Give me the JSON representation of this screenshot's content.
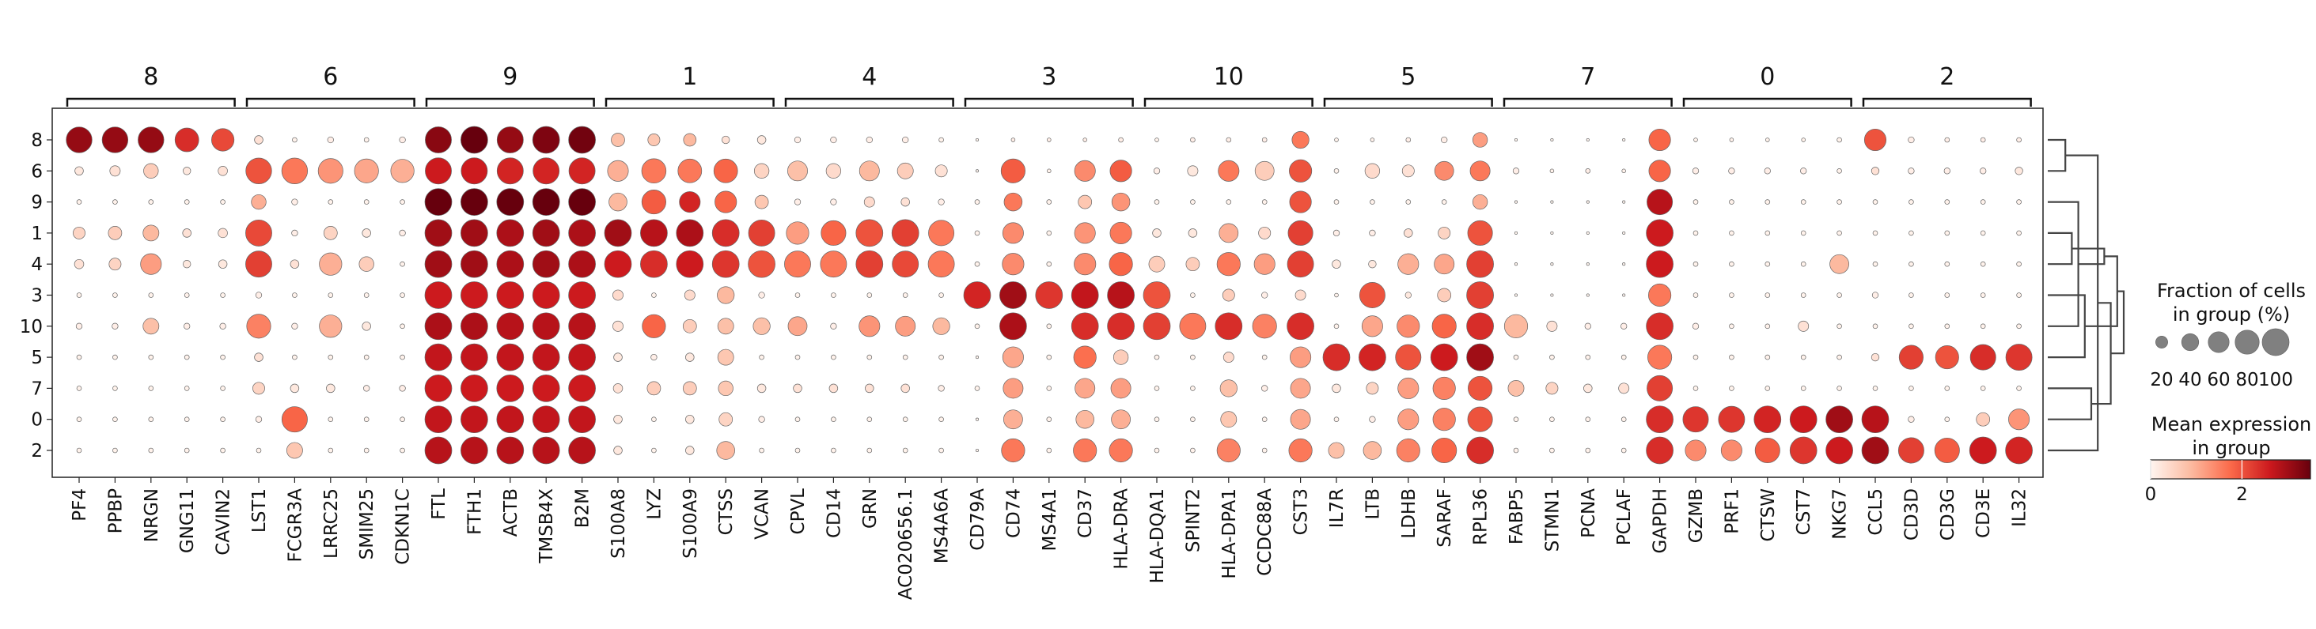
{
  "chart_data": {
    "type": "dotplot",
    "gene_groups": [
      {
        "label": "8",
        "genes": [
          "PF4",
          "PPBP",
          "NRGN",
          "GNG11",
          "CAVIN2"
        ]
      },
      {
        "label": "6",
        "genes": [
          "LST1",
          "FCGR3A",
          "LRRC25",
          "SMIM25",
          "CDKN1C"
        ]
      },
      {
        "label": "9",
        "genes": [
          "FTL",
          "FTH1",
          "ACTB",
          "TMSB4X",
          "B2M"
        ]
      },
      {
        "label": "1",
        "genes": [
          "S100A8",
          "LYZ",
          "S100A9",
          "CTSS",
          "VCAN"
        ]
      },
      {
        "label": "4",
        "genes": [
          "CPVL",
          "CD14",
          "GRN",
          "AC020656.1",
          "MS4A6A"
        ]
      },
      {
        "label": "3",
        "genes": [
          "CD79A",
          "CD74",
          "MS4A1",
          "CD37",
          "HLA-DRA"
        ]
      },
      {
        "label": "10",
        "genes": [
          "HLA-DQA1",
          "SPINT2",
          "HLA-DPA1",
          "CCDC88A",
          "CST3"
        ]
      },
      {
        "label": "5",
        "genes": [
          "IL7R",
          "LTB",
          "LDHB",
          "SARAF",
          "RPL36"
        ]
      },
      {
        "label": "7",
        "genes": [
          "FABP5",
          "STMN1",
          "PCNA",
          "PCLAF",
          "GAPDH"
        ]
      },
      {
        "label": "0",
        "genes": [
          "GZMB",
          "PRF1",
          "CTSW",
          "CST7",
          "NKG7"
        ]
      },
      {
        "label": "2",
        "genes": [
          "CCL5",
          "CD3D",
          "CD3G",
          "CD3E",
          "IL32"
        ]
      }
    ],
    "rows": [
      "8",
      "6",
      "9",
      "1",
      "4",
      "3",
      "10",
      "5",
      "7",
      "0",
      "2"
    ],
    "fraction_pct": [
      [
        92,
        92,
        92,
        78,
        70,
        10,
        3,
        5,
        3,
        5,
        95,
        100,
        95,
        100,
        100,
        25,
        20,
        22,
        8,
        10,
        5,
        5,
        5,
        5,
        3,
        1,
        2,
        2,
        2,
        3,
        2,
        3,
        3,
        3,
        40,
        2,
        2,
        3,
        5,
        30,
        1,
        1,
        1,
        1,
        65,
        2,
        2,
        2,
        2,
        3,
        65,
        5,
        3,
        3,
        3
      ],
      [
        10,
        15,
        30,
        8,
        12,
        92,
        92,
        85,
        80,
        75,
        95,
        95,
        95,
        95,
        95,
        60,
        82,
        78,
        78,
        30,
        55,
        30,
        55,
        35,
        20,
        1,
        80,
        2,
        60,
        65,
        5,
        15,
        60,
        50,
        70,
        3,
        30,
        20,
        50,
        55,
        5,
        2,
        3,
        2,
        65,
        5,
        5,
        5,
        5,
        3,
        8,
        5,
        5,
        5,
        8
      ],
      [
        3,
        3,
        3,
        3,
        3,
        30,
        5,
        3,
        3,
        3,
        100,
        100,
        100,
        100,
        100,
        45,
        80,
        60,
        65,
        25,
        5,
        5,
        15,
        10,
        5,
        3,
        45,
        3,
        25,
        45,
        3,
        3,
        3,
        3,
        65,
        3,
        3,
        3,
        3,
        30,
        1,
        1,
        1,
        1,
        90,
        3,
        3,
        3,
        3,
        3,
        3,
        3,
        3,
        3,
        3
      ],
      [
        20,
        25,
        35,
        10,
        12,
        95,
        5,
        25,
        10,
        5,
        100,
        100,
        100,
        100,
        100,
        100,
        100,
        100,
        100,
        95,
        70,
        85,
        100,
        100,
        90,
        3,
        60,
        3,
        60,
        65,
        10,
        10,
        50,
        20,
        85,
        5,
        5,
        10,
        20,
        85,
        1,
        1,
        1,
        1,
        100,
        3,
        3,
        3,
        3,
        3,
        3,
        3,
        3,
        3,
        3
      ],
      [
        12,
        20,
        60,
        8,
        10,
        95,
        10,
        70,
        30,
        3,
        100,
        100,
        100,
        100,
        100,
        100,
        100,
        100,
        100,
        100,
        95,
        95,
        100,
        95,
        95,
        3,
        65,
        3,
        65,
        75,
        35,
        25,
        75,
        60,
        95,
        10,
        8,
        60,
        55,
        100,
        1,
        1,
        1,
        1,
        100,
        3,
        3,
        3,
        3,
        50,
        3,
        3,
        3,
        3,
        3
      ],
      [
        3,
        3,
        3,
        3,
        3,
        5,
        3,
        3,
        3,
        3,
        100,
        100,
        100,
        100,
        100,
        15,
        3,
        15,
        40,
        5,
        3,
        3,
        3,
        3,
        3,
        100,
        100,
        100,
        100,
        100,
        100,
        3,
        20,
        5,
        15,
        2,
        90,
        5,
        25,
        100,
        1,
        1,
        1,
        1,
        70,
        3,
        3,
        3,
        3,
        3,
        5,
        3,
        3,
        3,
        3
      ],
      [
        5,
        5,
        35,
        5,
        5,
        80,
        5,
        70,
        10,
        3,
        100,
        100,
        100,
        100,
        100,
        15,
        75,
        25,
        35,
        40,
        50,
        5,
        60,
        55,
        40,
        3,
        100,
        3,
        100,
        100,
        100,
        95,
        100,
        80,
        100,
        3,
        60,
        70,
        80,
        100,
        75,
        15,
        5,
        5,
        100,
        5,
        3,
        3,
        15,
        3,
        3,
        3,
        3,
        3,
        3
      ],
      [
        3,
        3,
        3,
        3,
        3,
        10,
        3,
        3,
        3,
        3,
        100,
        100,
        100,
        100,
        100,
        10,
        5,
        10,
        35,
        3,
        3,
        3,
        3,
        3,
        3,
        1,
        60,
        3,
        70,
        30,
        3,
        3,
        15,
        3,
        60,
        100,
        100,
        90,
        100,
        100,
        3,
        3,
        3,
        3,
        80,
        3,
        3,
        3,
        3,
        3,
        8,
        80,
        75,
        90,
        95
      ],
      [
        3,
        3,
        3,
        3,
        3,
        20,
        10,
        10,
        5,
        5,
        100,
        100,
        100,
        100,
        100,
        12,
        25,
        25,
        30,
        10,
        10,
        10,
        10,
        10,
        5,
        3,
        55,
        3,
        55,
        55,
        3,
        3,
        40,
        5,
        55,
        10,
        20,
        60,
        70,
        80,
        35,
        20,
        10,
        15,
        90,
        3,
        3,
        3,
        3,
        3,
        3,
        3,
        3,
        3,
        3
      ],
      [
        3,
        3,
        3,
        3,
        3,
        5,
        90,
        3,
        3,
        3,
        100,
        100,
        100,
        100,
        100,
        10,
        3,
        10,
        25,
        5,
        3,
        3,
        3,
        3,
        3,
        1,
        50,
        3,
        45,
        50,
        3,
        3,
        35,
        3,
        55,
        3,
        5,
        60,
        70,
        85,
        3,
        3,
        3,
        3,
        100,
        90,
        95,
        100,
        100,
        100,
        100,
        5,
        3,
        25,
        60
      ],
      [
        3,
        3,
        3,
        3,
        3,
        3,
        35,
        3,
        3,
        3,
        100,
        100,
        100,
        100,
        100,
        10,
        3,
        10,
        45,
        3,
        3,
        3,
        3,
        3,
        3,
        1,
        75,
        3,
        75,
        75,
        3,
        3,
        75,
        3,
        75,
        35,
        45,
        75,
        85,
        100,
        3,
        3,
        3,
        3,
        100,
        60,
        60,
        85,
        100,
        100,
        100,
        90,
        85,
        100,
        100
      ]
    ],
    "mean_expression": [
      [
        3.1,
        3.1,
        3.1,
        2.4,
        2.1,
        0.3,
        0.05,
        0.1,
        0.05,
        0.1,
        3.2,
        3.5,
        3.1,
        3.3,
        3.4,
        0.8,
        0.7,
        0.9,
        0.3,
        0.2,
        0.1,
        0.1,
        0.1,
        0.1,
        0.05,
        0.02,
        0.1,
        0.1,
        0.1,
        0.1,
        0.05,
        0.1,
        0.1,
        0.1,
        1.6,
        0.05,
        0.05,
        0.1,
        0.1,
        1.2,
        0.02,
        0.02,
        0.02,
        0.02,
        1.8,
        0.05,
        0.05,
        0.05,
        0.05,
        0.05,
        2.0,
        0.1,
        0.1,
        0.1,
        0.1
      ],
      [
        0.2,
        0.3,
        0.6,
        0.2,
        0.3,
        2.0,
        1.6,
        1.3,
        1.1,
        1.0,
        2.6,
        2.6,
        2.5,
        2.5,
        2.5,
        1.0,
        1.6,
        1.6,
        1.8,
        0.5,
        0.8,
        0.4,
        0.9,
        0.6,
        0.3,
        0.02,
        1.9,
        0.05,
        1.4,
        1.9,
        0.1,
        0.2,
        1.6,
        0.6,
        2.0,
        0.05,
        0.4,
        0.3,
        1.4,
        1.6,
        0.1,
        0.05,
        0.1,
        0.05,
        1.8,
        0.1,
        0.1,
        0.1,
        0.1,
        0.05,
        0.3,
        0.1,
        0.1,
        0.1,
        0.2
      ],
      [
        0.05,
        0.05,
        0.05,
        0.05,
        0.05,
        1.0,
        0.1,
        0.05,
        0.05,
        0.05,
        4.1,
        4.0,
        3.9,
        3.8,
        3.7,
        0.9,
        1.9,
        2.5,
        1.8,
        0.7,
        0.1,
        0.1,
        0.4,
        0.3,
        0.1,
        0.05,
        1.6,
        0.05,
        0.7,
        1.3,
        0.05,
        0.05,
        0.05,
        0.05,
        2.0,
        0.05,
        0.05,
        0.05,
        0.05,
        1.0,
        0.02,
        0.02,
        0.02,
        0.02,
        2.8,
        0.05,
        0.05,
        0.05,
        0.05,
        0.05,
        0.05,
        0.05,
        0.05,
        0.05,
        0.05
      ],
      [
        0.5,
        0.6,
        0.9,
        0.3,
        0.3,
        2.1,
        0.1,
        0.5,
        0.2,
        0.1,
        3.0,
        3.0,
        2.9,
        3.0,
        2.9,
        3.0,
        2.8,
        2.9,
        2.4,
        2.2,
        1.2,
        1.8,
        2.0,
        2.2,
        1.6,
        0.05,
        1.4,
        0.05,
        1.3,
        1.6,
        0.2,
        0.2,
        1.0,
        0.4,
        2.2,
        0.1,
        0.1,
        0.3,
        0.5,
        2.0,
        0.02,
        0.02,
        0.02,
        0.02,
        2.6,
        0.05,
        0.05,
        0.05,
        0.05,
        0.05,
        0.05,
        0.05,
        0.05,
        0.05,
        0.05
      ],
      [
        0.3,
        0.5,
        1.2,
        0.2,
        0.2,
        2.2,
        0.3,
        1.0,
        0.6,
        0.05,
        3.0,
        3.0,
        2.9,
        3.0,
        2.9,
        2.6,
        2.4,
        2.6,
        2.3,
        2.0,
        1.6,
        1.6,
        2.2,
        2.1,
        1.6,
        0.05,
        1.4,
        0.05,
        1.4,
        1.8,
        0.6,
        0.6,
        1.6,
        1.2,
        2.2,
        0.2,
        0.2,
        1.0,
        1.1,
        2.2,
        0.02,
        0.02,
        0.02,
        0.02,
        2.6,
        0.05,
        0.05,
        0.05,
        0.05,
        0.9,
        0.05,
        0.05,
        0.05,
        0.05,
        0.05
      ],
      [
        0.05,
        0.05,
        0.05,
        0.05,
        0.05,
        0.1,
        0.05,
        0.05,
        0.05,
        0.05,
        2.6,
        2.6,
        2.6,
        2.6,
        2.6,
        0.4,
        0.05,
        0.4,
        0.9,
        0.1,
        0.05,
        0.05,
        0.05,
        0.05,
        0.05,
        2.5,
        3.0,
        2.3,
        2.7,
        2.8,
        2.0,
        0.05,
        0.6,
        0.1,
        0.4,
        0.05,
        2.0,
        0.2,
        0.6,
        2.2,
        0.02,
        0.02,
        0.02,
        0.02,
        1.6,
        0.05,
        0.05,
        0.05,
        0.05,
        0.05,
        0.1,
        0.05,
        0.05,
        0.05,
        0.05
      ],
      [
        0.1,
        0.1,
        0.8,
        0.1,
        0.1,
        1.5,
        0.1,
        1.0,
        0.2,
        0.05,
        2.9,
        2.9,
        2.8,
        2.8,
        2.8,
        0.3,
        1.8,
        0.6,
        0.8,
        0.8,
        1.1,
        0.1,
        1.3,
        1.2,
        0.9,
        0.05,
        2.9,
        0.05,
        2.4,
        2.4,
        2.2,
        1.6,
        2.4,
        1.5,
        2.4,
        0.05,
        1.1,
        1.4,
        1.8,
        2.4,
        0.9,
        0.3,
        0.1,
        0.1,
        2.4,
        0.1,
        0.05,
        0.05,
        0.3,
        0.05,
        0.05,
        0.05,
        0.05,
        0.05,
        0.05
      ],
      [
        0.05,
        0.05,
        0.05,
        0.05,
        0.05,
        0.3,
        0.05,
        0.05,
        0.05,
        0.05,
        2.7,
        2.7,
        2.7,
        2.7,
        2.7,
        0.2,
        0.1,
        0.2,
        0.7,
        0.05,
        0.05,
        0.05,
        0.05,
        0.05,
        0.05,
        0.02,
        1.1,
        0.05,
        1.7,
        0.6,
        0.05,
        0.05,
        0.4,
        0.05,
        1.2,
        2.4,
        2.5,
        2.0,
        2.6,
        3.0,
        0.05,
        0.05,
        0.05,
        0.05,
        1.6,
        0.05,
        0.05,
        0.05,
        0.05,
        0.05,
        0.3,
        2.2,
        2.0,
        2.4,
        2.3
      ],
      [
        0.05,
        0.05,
        0.05,
        0.05,
        0.05,
        0.5,
        0.2,
        0.2,
        0.1,
        0.1,
        2.6,
        2.6,
        2.6,
        2.6,
        2.6,
        0.3,
        0.6,
        0.6,
        0.7,
        0.2,
        0.3,
        0.3,
        0.3,
        0.3,
        0.1,
        0.05,
        1.2,
        0.05,
        1.1,
        1.2,
        0.05,
        0.05,
        0.8,
        0.1,
        1.1,
        0.2,
        0.5,
        1.2,
        1.5,
        2.0,
        0.8,
        0.5,
        0.2,
        0.3,
        2.2,
        0.05,
        0.05,
        0.05,
        0.05,
        0.05,
        0.05,
        0.05,
        0.05,
        0.05,
        0.05
      ],
      [
        0.05,
        0.05,
        0.05,
        0.05,
        0.05,
        0.1,
        1.8,
        0.05,
        0.05,
        0.05,
        2.7,
        2.7,
        2.7,
        2.7,
        2.7,
        0.2,
        0.05,
        0.2,
        0.5,
        0.1,
        0.05,
        0.05,
        0.05,
        0.05,
        0.05,
        0.02,
        1.0,
        0.05,
        0.9,
        1.0,
        0.05,
        0.05,
        0.7,
        0.05,
        1.1,
        0.05,
        0.1,
        1.2,
        1.5,
        2.0,
        0.05,
        0.05,
        0.05,
        0.05,
        2.4,
        2.3,
        2.3,
        2.5,
        2.6,
        3.0,
        2.8,
        0.1,
        0.05,
        0.6,
        1.3
      ],
      [
        0.05,
        0.05,
        0.05,
        0.05,
        0.05,
        0.05,
        0.7,
        0.05,
        0.05,
        0.05,
        2.8,
        2.8,
        2.8,
        2.8,
        2.8,
        0.2,
        0.05,
        0.2,
        0.9,
        0.05,
        0.05,
        0.05,
        0.05,
        0.05,
        0.05,
        0.02,
        1.6,
        0.05,
        1.6,
        1.6,
        0.05,
        0.05,
        1.5,
        0.05,
        1.6,
        0.8,
        0.9,
        1.5,
        1.8,
        2.4,
        0.05,
        0.05,
        0.05,
        0.05,
        2.4,
        1.4,
        1.4,
        1.9,
        2.3,
        2.6,
        3.0,
        2.2,
        1.9,
        2.6,
        2.5
      ]
    ],
    "size_legend": {
      "title": [
        "Fraction of cells",
        "in group (%)"
      ],
      "values": [
        20,
        40,
        60,
        80,
        100
      ]
    },
    "color_legend": {
      "title": [
        "Mean expression",
        "in group"
      ],
      "ticks": [
        0,
        2
      ],
      "vmin": 0,
      "vmax": 3.5,
      "colors": [
        "#fff5f0",
        "#fcbba1",
        "#fb6a4a",
        "#cb181d",
        "#67000d"
      ]
    },
    "dendrogram": {
      "merges": [
        [
          0,
          1
        ],
        [
          4,
          3
        ],
        [
          2,
          6
        ],
        [
          5,
          7
        ],
        [
          9,
          8
        ],
        [
          10,
          11
        ],
        [
          12,
          13
        ],
        [
          15,
          16
        ],
        [
          14,
          17
        ],
        [
          18,
          19
        ]
      ]
    }
  }
}
